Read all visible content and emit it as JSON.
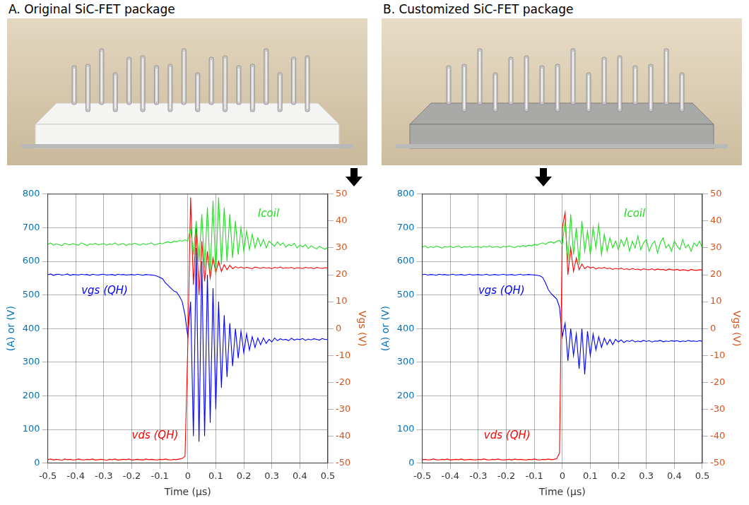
{
  "chart_data": [
    {
      "type": "line",
      "title": "A. Original SiC-FET package",
      "xlabel": "Time (μs)",
      "ylabel": "(A) or (V)",
      "y2label": "Vgs (V)",
      "xlim": [
        -0.5,
        0.5
      ],
      "xticks": [
        -0.5,
        -0.4,
        -0.3,
        -0.2,
        -0.1,
        0,
        0.1,
        0.2,
        0.3,
        0.4,
        0.5
      ],
      "ylim": [
        0,
        800
      ],
      "yticks": [
        0,
        100,
        200,
        300,
        400,
        500,
        600,
        700,
        800
      ],
      "y2lim": [
        -50,
        50
      ],
      "y2ticks": [
        -50,
        -40,
        -30,
        -20,
        -10,
        0,
        10,
        20,
        30,
        40,
        50
      ],
      "grid": true,
      "x": [
        -0.5,
        -0.49,
        -0.48,
        -0.47,
        -0.46,
        -0.45,
        -0.44,
        -0.43,
        -0.42,
        -0.41,
        -0.4,
        -0.39,
        -0.38,
        -0.37,
        -0.36,
        -0.35,
        -0.34,
        -0.33,
        -0.32,
        -0.31,
        -0.3,
        -0.29,
        -0.28,
        -0.27,
        -0.26,
        -0.25,
        -0.24,
        -0.23,
        -0.22,
        -0.21,
        -0.2,
        -0.19,
        -0.18,
        -0.17,
        -0.16,
        -0.15,
        -0.14,
        -0.13,
        -0.12,
        -0.11,
        -0.1,
        -0.09,
        -0.08,
        -0.07,
        -0.06,
        -0.05,
        -0.04,
        -0.03,
        -0.02,
        -0.01,
        0,
        0.01,
        0.02,
        0.03,
        0.04,
        0.05,
        0.06,
        0.07,
        0.08,
        0.09,
        0.1,
        0.11,
        0.12,
        0.13,
        0.14,
        0.15,
        0.16,
        0.17,
        0.18,
        0.19,
        0.2,
        0.21,
        0.22,
        0.23,
        0.24,
        0.25,
        0.26,
        0.27,
        0.28,
        0.29,
        0.3,
        0.31,
        0.32,
        0.33,
        0.34,
        0.35,
        0.36,
        0.37,
        0.38,
        0.39,
        0.4,
        0.41,
        0.42,
        0.43,
        0.44,
        0.45,
        0.46,
        0.47,
        0.48,
        0.49,
        0.5
      ],
      "series": [
        {
          "name": "Icoil",
          "color": "#22dd22",
          "values": [
            650,
            655,
            648,
            652,
            650,
            646,
            654,
            651,
            649,
            653,
            650,
            648,
            655,
            651,
            647,
            652,
            650,
            654,
            649,
            651,
            653,
            648,
            652,
            650,
            655,
            649,
            651,
            653,
            647,
            652,
            650,
            654,
            651,
            648,
            653,
            650,
            652,
            655,
            649,
            651,
            654,
            652,
            656,
            658,
            655,
            660,
            658,
            662,
            660,
            664,
            660,
            700,
            620,
            720,
            600,
            740,
            580,
            760,
            560,
            780,
            560,
            790,
            590,
            760,
            600,
            740,
            610,
            720,
            620,
            700,
            630,
            690,
            635,
            680,
            640,
            670,
            645,
            665,
            640,
            660,
            652,
            645,
            658,
            648,
            655,
            642,
            650,
            646,
            654,
            640,
            648,
            643,
            650,
            638,
            646,
            641,
            637,
            645,
            640,
            636,
            642
          ]
        },
        {
          "name": "vds (QH)",
          "color": "#ff0000",
          "values": [
            10,
            12,
            9,
            11,
            10,
            8,
            12,
            10,
            11,
            9,
            10,
            12,
            10,
            9,
            11,
            10,
            12,
            9,
            10,
            11,
            10,
            8,
            11,
            10,
            12,
            9,
            10,
            11,
            10,
            12,
            9,
            10,
            11,
            10,
            9,
            12,
            10,
            11,
            10,
            9,
            11,
            10,
            12,
            10,
            9,
            11,
            10,
            12,
            14,
            20,
            350,
            790,
            530,
            700,
            500,
            660,
            540,
            630,
            550,
            610,
            565,
            600,
            570,
            590,
            575,
            588,
            578,
            584,
            580,
            583,
            579,
            582,
            580,
            578,
            583,
            581,
            579,
            582,
            580,
            581,
            578,
            582,
            580,
            583,
            579,
            581,
            580,
            582,
            578,
            581,
            580,
            579,
            582,
            580,
            581,
            578,
            582,
            580,
            579,
            581,
            580
          ]
        },
        {
          "name": "vgs (QH)",
          "color": "#0000ff",
          "axis": "y2",
          "values": [
            20,
            20.3,
            19.8,
            20.1,
            20.2,
            19.9,
            20,
            20.3,
            19.8,
            20.1,
            20,
            19.9,
            20.2,
            20,
            20.1,
            19.8,
            20.2,
            20,
            19.9,
            20.1,
            20.2,
            19.9,
            20,
            20.1,
            19.8,
            20.2,
            20,
            20.1,
            19.9,
            20,
            20.1,
            19.9,
            20.2,
            20,
            19.8,
            20.1,
            20,
            19.9,
            19.8,
            19.5,
            19,
            18.5,
            17,
            16,
            15,
            14,
            13.5,
            12,
            10,
            5,
            -3,
            10,
            -40,
            30,
            -42,
            25,
            -40,
            20,
            -35,
            15,
            -30,
            10,
            -22,
            5,
            -18,
            2,
            -14,
            0,
            -11,
            -1,
            -9,
            -2,
            -8,
            -3,
            -7,
            -3.5,
            -6,
            -3.5,
            -5.5,
            -4,
            -5,
            -3.5,
            -4.5,
            -3.8,
            -4.2,
            -4,
            -4.5,
            -3.6,
            -4.3,
            -3.9,
            -4.1,
            -3.7,
            -4.4,
            -3.9,
            -4.2,
            -3.8,
            -4,
            -4.3,
            -3.7,
            -4.1,
            -4
          ]
        }
      ]
    },
    {
      "type": "line",
      "title": "B. Customized SiC-FET package",
      "xlabel": "Time (μs)",
      "ylabel": "(A) or (V)",
      "y2label": "Vgs (V)",
      "xlim": [
        -0.5,
        0.5
      ],
      "xticks": [
        -0.5,
        -0.4,
        -0.3,
        -0.2,
        -0.1,
        0,
        0.1,
        0.2,
        0.3,
        0.4,
        0.5
      ],
      "ylim": [
        0,
        800
      ],
      "yticks": [
        0,
        100,
        200,
        300,
        400,
        500,
        600,
        700,
        800
      ],
      "y2lim": [
        -50,
        50
      ],
      "y2ticks": [
        -50,
        -40,
        -30,
        -20,
        -10,
        0,
        10,
        20,
        30,
        40,
        50
      ],
      "grid": true,
      "x": [
        -0.5,
        -0.49,
        -0.48,
        -0.47,
        -0.46,
        -0.45,
        -0.44,
        -0.43,
        -0.42,
        -0.41,
        -0.4,
        -0.39,
        -0.38,
        -0.37,
        -0.36,
        -0.35,
        -0.34,
        -0.33,
        -0.32,
        -0.31,
        -0.3,
        -0.29,
        -0.28,
        -0.27,
        -0.26,
        -0.25,
        -0.24,
        -0.23,
        -0.22,
        -0.21,
        -0.2,
        -0.19,
        -0.18,
        -0.17,
        -0.16,
        -0.15,
        -0.14,
        -0.13,
        -0.12,
        -0.11,
        -0.1,
        -0.09,
        -0.08,
        -0.07,
        -0.06,
        -0.05,
        -0.04,
        -0.03,
        -0.02,
        -0.01,
        0,
        0.01,
        0.02,
        0.03,
        0.04,
        0.05,
        0.06,
        0.07,
        0.08,
        0.09,
        0.1,
        0.11,
        0.12,
        0.13,
        0.14,
        0.15,
        0.16,
        0.17,
        0.18,
        0.19,
        0.2,
        0.21,
        0.22,
        0.23,
        0.24,
        0.25,
        0.26,
        0.27,
        0.28,
        0.29,
        0.3,
        0.31,
        0.32,
        0.33,
        0.34,
        0.35,
        0.36,
        0.37,
        0.38,
        0.39,
        0.4,
        0.41,
        0.42,
        0.43,
        0.44,
        0.45,
        0.46,
        0.47,
        0.48,
        0.49,
        0.5
      ],
      "series": [
        {
          "name": "Icoil",
          "color": "#22dd22",
          "values": [
            642,
            646,
            640,
            644,
            641,
            645,
            643,
            639,
            644,
            642,
            645,
            641,
            643,
            646,
            640,
            644,
            642,
            645,
            641,
            643,
            644,
            640,
            645,
            642,
            646,
            641,
            643,
            644,
            640,
            645,
            642,
            646,
            643,
            641,
            645,
            643,
            647,
            644,
            648,
            646,
            650,
            648,
            652,
            655,
            650,
            656,
            658,
            654,
            660,
            662,
            650,
            720,
            600,
            740,
            620,
            700,
            590,
            720,
            630,
            690,
            620,
            700,
            640,
            710,
            620,
            680,
            630,
            670,
            640,
            660,
            635,
            665,
            645,
            670,
            630,
            660,
            640,
            675,
            635,
            655,
            665,
            630,
            650,
            660,
            625,
            655,
            670,
            640,
            650,
            630,
            660,
            645,
            635,
            665,
            640,
            650,
            630,
            655,
            645,
            660,
            640
          ]
        },
        {
          "name": "vds (QH)",
          "color": "#ff0000",
          "values": [
            10,
            11,
            9,
            10,
            12,
            10,
            9,
            11,
            10,
            12,
            9,
            10,
            11,
            10,
            12,
            9,
            10,
            11,
            10,
            9,
            11,
            10,
            12,
            10,
            9,
            11,
            10,
            12,
            10,
            9,
            10,
            11,
            9,
            12,
            10,
            11,
            10,
            9,
            11,
            10,
            12,
            10,
            9,
            11,
            10,
            12,
            10,
            11,
            13,
            30,
            700,
            745,
            560,
            640,
            570,
            610,
            575,
            592,
            578,
            585,
            580,
            583,
            577,
            581,
            579,
            582,
            578,
            580,
            576,
            579,
            577,
            580,
            576,
            578,
            575,
            579,
            576,
            577,
            574,
            578,
            576,
            575,
            578,
            574,
            577,
            575,
            576,
            573,
            577,
            575,
            574,
            576,
            573,
            575,
            574,
            572,
            576,
            574,
            573,
            575,
            574
          ]
        },
        {
          "name": "vgs (QH)",
          "color": "#0000ff",
          "axis": "y2",
          "values": [
            20,
            20.2,
            19.9,
            20.1,
            20,
            19.8,
            20.2,
            20,
            20.1,
            19.9,
            20,
            20.2,
            19.9,
            20,
            20.1,
            19.8,
            20,
            20.2,
            19.9,
            20,
            20.1,
            19.9,
            20,
            20.2,
            19.8,
            20,
            20.1,
            19.9,
            20,
            20.2,
            19.9,
            20,
            20.1,
            19.8,
            20,
            20.2,
            19.9,
            20,
            20.1,
            20,
            19.9,
            19.8,
            19.6,
            19,
            17,
            14.5,
            13,
            12,
            11,
            8,
            -3,
            2,
            -12,
            0,
            -10,
            -2,
            -15,
            0,
            -17,
            -1,
            -10,
            -2,
            -8,
            -3,
            -7,
            -3.5,
            -6,
            -4,
            -6,
            -4,
            -5,
            -4.2,
            -5.2,
            -4.5,
            -4.8,
            -4.3,
            -5,
            -4.6,
            -4.9,
            -4.4,
            -4.8,
            -4.5,
            -5,
            -4.6,
            -4.7,
            -4.4,
            -4.9,
            -4.6,
            -4.8,
            -4.5,
            -4.7,
            -4.5,
            -4.9,
            -4.6,
            -4.8,
            -4.4,
            -4.7,
            -4.6,
            -4.8,
            -4.5,
            -4.7
          ]
        }
      ]
    }
  ]
}
